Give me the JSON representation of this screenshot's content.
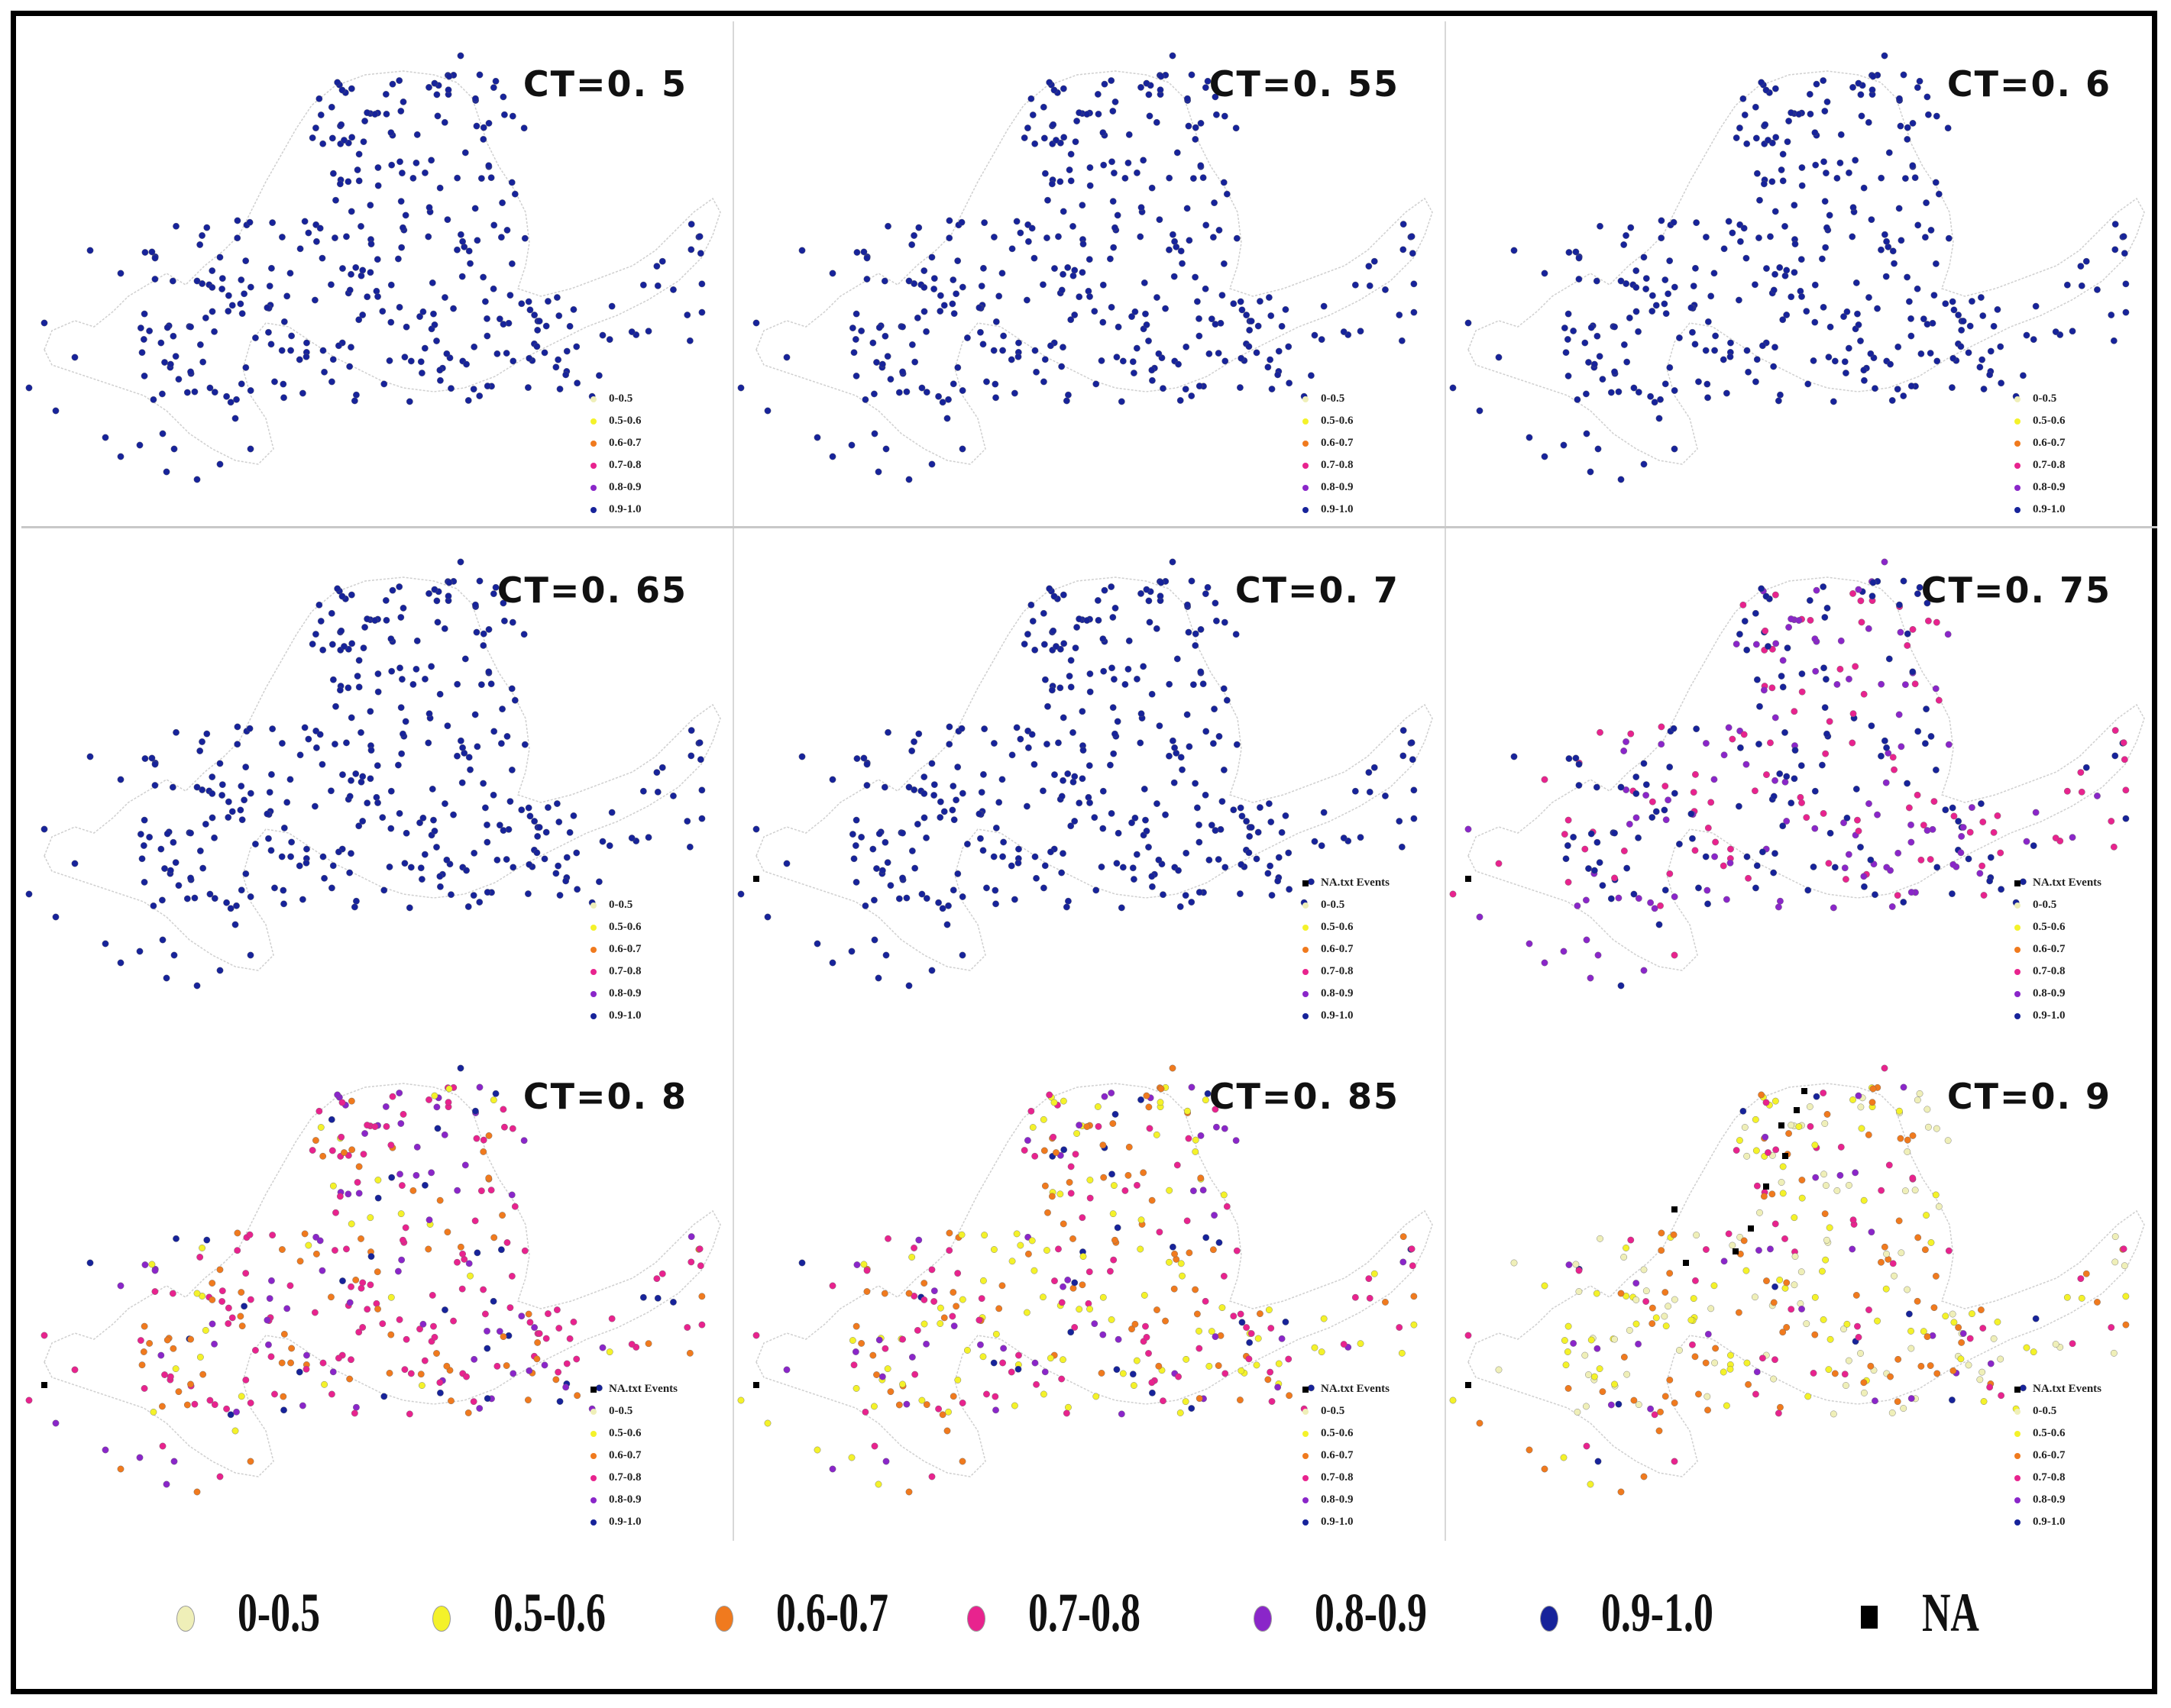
{
  "colors": {
    "0-0.5": "#efefb8",
    "0.5-0.6": "#f4f22a",
    "0.6-0.7": "#f07a1e",
    "0.7-0.8": "#e8238e",
    "0.8-0.9": "#8a26c9",
    "0.9-1.0": "#17239a",
    "NA": "#000000"
  },
  "panel_legend": {
    "na_label": "NA.txt Events",
    "classes": [
      "0-0.5",
      "0.5-0.6",
      "0.6-0.7",
      "0.7-0.8",
      "0.8-0.9",
      "0.9-1.0"
    ]
  },
  "panels": [
    {
      "title": "CT=0. 5",
      "show_na_legend": false,
      "na_points": 0,
      "mix": {
        "0.9-1.0": 1.0
      }
    },
    {
      "title": "CT=0. 55",
      "show_na_legend": false,
      "na_points": 0,
      "mix": {
        "0.9-1.0": 1.0
      }
    },
    {
      "title": "CT=0. 6",
      "show_na_legend": false,
      "na_points": 0,
      "mix": {
        "0.9-1.0": 1.0
      }
    },
    {
      "title": "CT=0. 65",
      "show_na_legend": false,
      "na_points": 0,
      "mix": {
        "0.9-1.0": 1.0
      }
    },
    {
      "title": "CT=0. 7",
      "show_na_legend": true,
      "na_points": 1,
      "mix": {
        "0.9-1.0": 1.0
      }
    },
    {
      "title": "CT=0. 75",
      "show_na_legend": true,
      "na_points": 1,
      "mix": {
        "0.9-1.0": 0.4,
        "0.8-0.9": 0.3,
        "0.7-0.8": 0.3
      }
    },
    {
      "title": "CT=0. 8",
      "show_na_legend": true,
      "na_points": 1,
      "mix": {
        "0.9-1.0": 0.12,
        "0.8-0.9": 0.2,
        "0.7-0.8": 0.35,
        "0.6-0.7": 0.25,
        "0.5-0.6": 0.08
      }
    },
    {
      "title": "CT=0. 85",
      "show_na_legend": true,
      "na_points": 1,
      "mix": {
        "0.9-1.0": 0.06,
        "0.8-0.9": 0.14,
        "0.7-0.8": 0.25,
        "0.6-0.7": 0.25,
        "0.5-0.6": 0.3
      }
    },
    {
      "title": "CT=0. 9",
      "show_na_legend": true,
      "na_points": 10,
      "mix": {
        "0.9-1.0": 0.03,
        "0.8-0.9": 0.07,
        "0.7-0.8": 0.15,
        "0.6-0.7": 0.25,
        "0.5-0.6": 0.2,
        "0-0.5": 0.3
      }
    }
  ],
  "bottom_legend": [
    {
      "key": "0-0.5",
      "label": "0-0.5"
    },
    {
      "key": "0.5-0.6",
      "label": "0.5-0.6"
    },
    {
      "key": "0.6-0.7",
      "label": "0.6-0.7"
    },
    {
      "key": "0.7-0.8",
      "label": "0.7-0.8"
    },
    {
      "key": "0.8-0.9",
      "label": "0.8-0.9"
    },
    {
      "key": "0.9-1.0",
      "label": "0.9-1.0"
    },
    {
      "key": "NA",
      "label": "NA"
    }
  ]
}
